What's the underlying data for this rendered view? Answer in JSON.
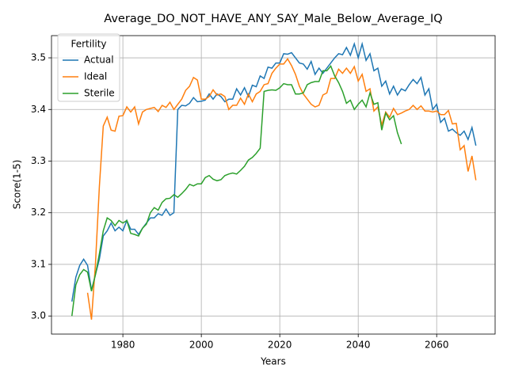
{
  "chart_data": {
    "type": "line",
    "title": "Average_DO_NOT_HAVE_ANY_SAY_Male_Below_Average_IQ",
    "xlabel": "Years",
    "ylabel": "Score(1-5)",
    "legend_title": "Fertility",
    "legend": "upper left",
    "grid": true,
    "xlim": [
      1961.8,
      2074.9
    ],
    "ylim": [
      2.965,
      3.543
    ],
    "xticks": [
      1980,
      2000,
      2020,
      2040,
      2060
    ],
    "yticks": [
      {
        "value": 3,
        "label": "3.0"
      },
      3.1,
      3.2,
      3.3,
      3.4,
      3.5
    ],
    "x": [
      1967,
      1968,
      1969,
      1970,
      1971,
      1972,
      1973,
      1974,
      1975,
      1976,
      1977,
      1978,
      1979,
      1980,
      1981,
      1982,
      1983,
      1984,
      1985,
      1986,
      1987,
      1988,
      1989,
      1990,
      1991,
      1992,
      1993,
      1994,
      1995,
      1996,
      1997,
      1998,
      1999,
      2000,
      2001,
      2002,
      2003,
      2004,
      2005,
      2006,
      2007,
      2008,
      2009,
      2010,
      2011,
      2012,
      2013,
      2014,
      2015,
      2016,
      2017,
      2018,
      2019,
      2020,
      2021,
      2022,
      2023,
      2024,
      2025,
      2026,
      2027,
      2028,
      2029,
      2030,
      2031,
      2032,
      2033,
      2034,
      2035,
      2036,
      2037,
      2038,
      2039,
      2040,
      2041,
      2042,
      2043,
      2044,
      2045,
      2046,
      2047,
      2048,
      2049,
      2050,
      2051,
      2052,
      2053,
      2054,
      2055,
      2056,
      2057,
      2058,
      2059,
      2060,
      2061,
      2062,
      2063,
      2064,
      2065,
      2066,
      2067,
      2068,
      2069,
      2070
    ],
    "series": [
      {
        "name": "Actual",
        "color": "#1f77b4",
        "values": [
          3.028,
          3.075,
          3.098,
          3.11,
          3.098,
          3.05,
          3.08,
          3.11,
          3.155,
          3.165,
          3.18,
          3.165,
          3.172,
          3.165,
          3.185,
          3.168,
          3.168,
          3.158,
          3.17,
          3.18,
          3.19,
          3.19,
          3.198,
          3.195,
          3.207,
          3.195,
          3.2,
          3.4,
          3.408,
          3.407,
          3.412,
          3.423,
          3.415,
          3.416,
          3.418,
          3.43,
          3.42,
          3.43,
          3.425,
          3.415,
          3.42,
          3.42,
          3.44,
          3.428,
          3.442,
          3.425,
          3.447,
          3.444,
          3.465,
          3.46,
          3.482,
          3.48,
          3.49,
          3.49,
          3.508,
          3.507,
          3.51,
          3.5,
          3.49,
          3.488,
          3.478,
          3.493,
          3.468,
          3.48,
          3.47,
          3.48,
          3.49,
          3.5,
          3.508,
          3.506,
          3.52,
          3.505,
          3.527,
          3.5,
          3.527,
          3.495,
          3.508,
          3.475,
          3.48,
          3.445,
          3.455,
          3.43,
          3.445,
          3.428,
          3.44,
          3.436,
          3.448,
          3.458,
          3.45,
          3.462,
          3.428,
          3.44,
          3.4,
          3.41,
          3.375,
          3.383,
          3.358,
          3.362,
          3.355,
          3.35,
          3.358,
          3.342,
          3.365,
          3.33
        ]
      },
      {
        "name": "Ideal",
        "color": "#ff7f0e",
        "values": [
          null,
          null,
          null,
          null,
          3.045,
          2.993,
          3.1,
          3.25,
          3.368,
          3.385,
          3.36,
          3.358,
          3.387,
          3.388,
          3.405,
          3.395,
          3.405,
          3.372,
          3.395,
          3.4,
          3.402,
          3.404,
          3.396,
          3.408,
          3.404,
          3.414,
          3.4,
          3.41,
          3.42,
          3.437,
          3.445,
          3.462,
          3.457,
          3.42,
          3.42,
          3.425,
          3.438,
          3.428,
          3.43,
          3.425,
          3.4,
          3.408,
          3.408,
          3.422,
          3.41,
          3.43,
          3.415,
          3.43,
          3.435,
          3.448,
          3.45,
          3.47,
          3.48,
          3.488,
          3.488,
          3.498,
          3.485,
          3.468,
          3.445,
          3.43,
          3.42,
          3.41,
          3.405,
          3.408,
          3.428,
          3.432,
          3.46,
          3.46,
          3.478,
          3.47,
          3.48,
          3.47,
          3.483,
          3.455,
          3.468,
          3.435,
          3.44,
          3.397,
          3.405,
          3.37,
          3.395,
          3.385,
          3.402,
          3.39,
          3.393,
          3.397,
          3.4,
          3.408,
          3.4,
          3.407,
          3.397,
          3.397,
          3.395,
          3.397,
          3.39,
          3.39,
          3.398,
          3.372,
          3.373,
          3.322,
          3.33,
          3.28,
          3.31,
          3.263
        ]
      },
      {
        "name": "Sterile",
        "color": "#2ca02c",
        "values": [
          3.0,
          3.06,
          3.08,
          3.09,
          3.085,
          3.048,
          3.08,
          3.12,
          3.165,
          3.19,
          3.185,
          3.175,
          3.185,
          3.18,
          3.185,
          3.16,
          3.158,
          3.155,
          3.17,
          3.178,
          3.2,
          3.21,
          3.205,
          3.22,
          3.227,
          3.228,
          3.235,
          3.23,
          3.237,
          3.245,
          3.255,
          3.252,
          3.256,
          3.256,
          3.268,
          3.272,
          3.265,
          3.262,
          3.264,
          3.272,
          3.275,
          3.277,
          3.275,
          3.282,
          3.29,
          3.302,
          3.307,
          3.315,
          3.325,
          3.435,
          3.437,
          3.438,
          3.437,
          3.442,
          3.45,
          3.448,
          3.448,
          3.43,
          3.43,
          3.432,
          3.448,
          3.452,
          3.454,
          3.454,
          3.475,
          3.475,
          3.484,
          3.465,
          3.452,
          3.435,
          3.412,
          3.418,
          3.4,
          3.41,
          3.418,
          3.405,
          3.432,
          3.41,
          3.413,
          3.36,
          3.393,
          3.38,
          3.388,
          3.355,
          3.333,
          null,
          null,
          null,
          null,
          null,
          null,
          null,
          null,
          null,
          null,
          null,
          null,
          null,
          null,
          null,
          null,
          null,
          null,
          null
        ]
      }
    ]
  }
}
